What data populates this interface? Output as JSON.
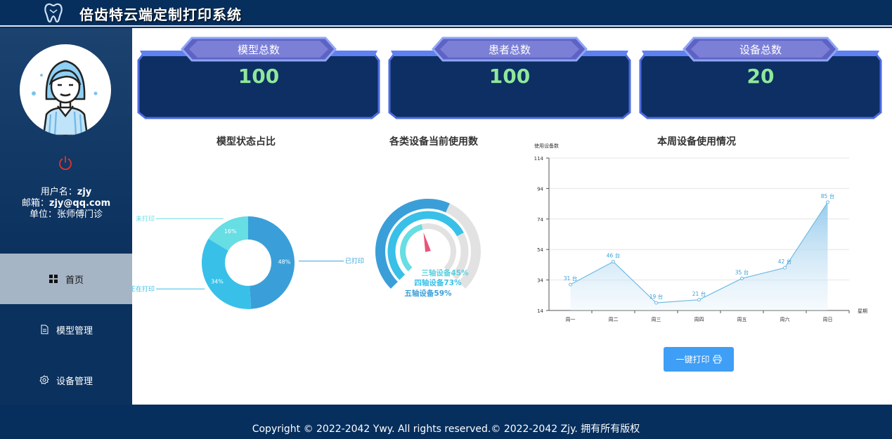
{
  "header": {
    "title": "倍齿特云端定制打印系统"
  },
  "sidebar": {
    "user": {
      "username_label": "用户名：",
      "username": "zjy",
      "email_label": "邮箱：",
      "email": "zjy@qq.com",
      "unit_label": "单位：",
      "unit": "张师傅门诊"
    },
    "nav": [
      {
        "label": "首页",
        "icon": "grid-icon",
        "active": true
      },
      {
        "label": "模型管理",
        "icon": "document-icon",
        "active": false
      },
      {
        "label": "设备管理",
        "icon": "gear-icon",
        "active": false
      }
    ]
  },
  "stats": [
    {
      "label": "模型总数",
      "value": "100"
    },
    {
      "label": "患者总数",
      "value": "100"
    },
    {
      "label": "设备总数",
      "value": "20"
    }
  ],
  "colors": {
    "navy": "#062f5e",
    "accent_green": "#8fe89a",
    "chart_blue": "#3a9fd8",
    "chart_light": "#5ad0e0",
    "button": "#3f9ef5"
  },
  "chart_data": [
    {
      "type": "pie",
      "title": "模型状态占比",
      "slices": [
        {
          "name": "已打印",
          "value": 48,
          "label": "48%",
          "color": "#3a9fd8"
        },
        {
          "name": "正在打印",
          "value": 34,
          "label": "34%",
          "color": "#38c0e8"
        },
        {
          "name": "未打印",
          "value": 16,
          "label": "16%",
          "color": "#67dde4"
        }
      ]
    },
    {
      "type": "gauge",
      "title": "各类设备当前使用数",
      "series": [
        {
          "name": "三轴设备",
          "value": 45,
          "label": "三轴设备45%"
        },
        {
          "name": "四轴设备",
          "value": 73,
          "label": "四轴设备73%"
        },
        {
          "name": "五轴设备",
          "value": 59,
          "label": "五轴设备59%"
        }
      ]
    },
    {
      "type": "area",
      "title": "本周设备使用情况",
      "ylabel": "使用设备数",
      "xlabel": "星期",
      "ylim": [
        14,
        114
      ],
      "yticks": [
        "14",
        "34",
        "54",
        "74",
        "94",
        "114"
      ],
      "categories": [
        "周一",
        "周二",
        "周三",
        "周四",
        "周五",
        "周六",
        "周日"
      ],
      "values": [
        31,
        46,
        19,
        21,
        35,
        42,
        85
      ],
      "value_suffix": " 台"
    }
  ],
  "actions": {
    "print_label": "一键打印"
  },
  "footer": {
    "copyright": "Copyright © 2022-2042 Ywy. All rights reserved.© 2022-2042 Zjy. 拥有所有版权"
  }
}
